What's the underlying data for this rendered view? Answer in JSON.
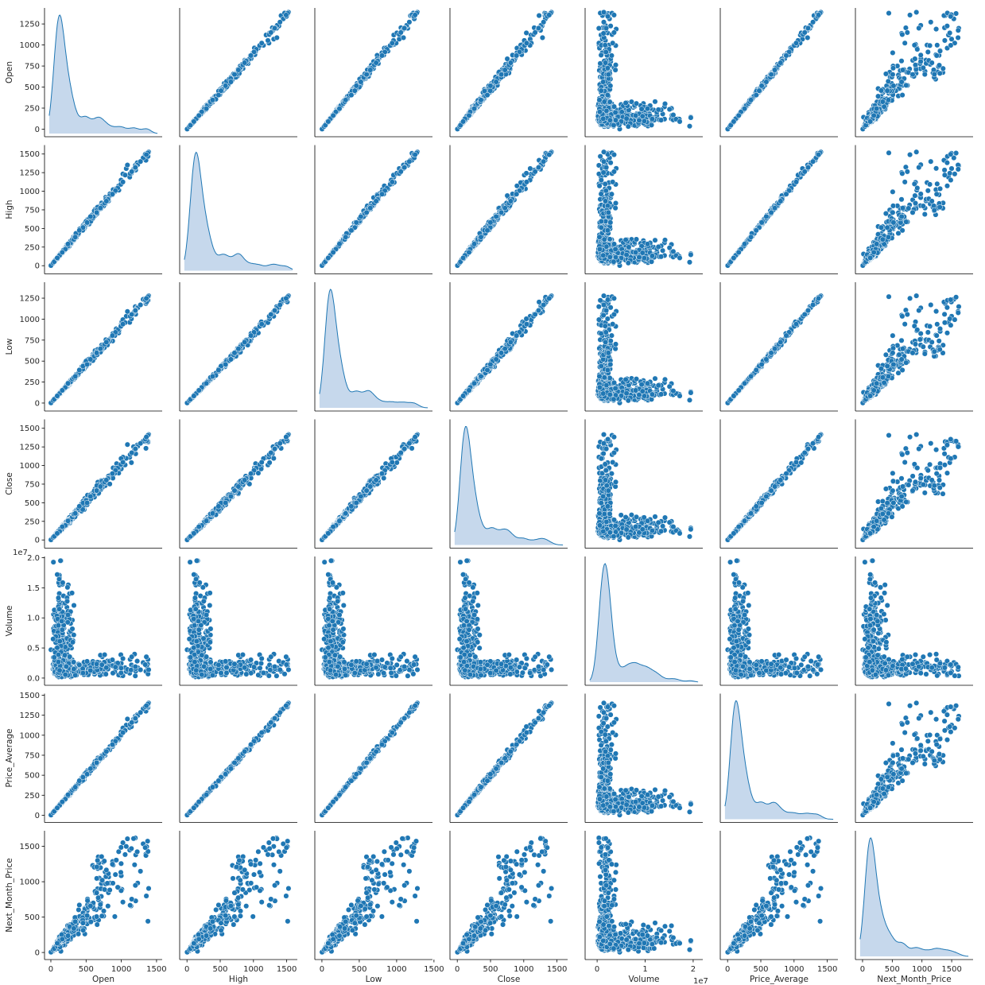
{
  "chart_data": {
    "type": "scatter",
    "variant": "pairplot",
    "variables": [
      "Open",
      "High",
      "Low",
      "Close",
      "Volume",
      "Price_Average",
      "Next_Month_Price"
    ],
    "diagonal": "kde",
    "colors": {
      "point": "#1f77b4",
      "point_edge": "#ffffff",
      "kde_fill": "#c6d8ec",
      "kde_line": "#1f77b4",
      "axis": "#000000",
      "text": "#262626",
      "background": "#ffffff"
    },
    "axes": {
      "Open": {
        "range": [
          -90,
          1580
        ],
        "ticks": [
          0,
          500,
          1000,
          1500
        ],
        "tick_labels": [
          "0",
          "500",
          "1000",
          "1500"
        ],
        "y_range": [
          -90,
          1440
        ],
        "y_ticks": [
          0,
          250,
          500,
          750,
          1000,
          1250
        ],
        "y_tick_labels": [
          "0",
          "250",
          "500",
          "750",
          "1000",
          "1250"
        ]
      },
      "High": {
        "range": [
          -110,
          1660
        ],
        "ticks": [
          0,
          500,
          1000,
          1500
        ],
        "tick_labels": [
          "0",
          "500",
          "1000",
          "1500"
        ],
        "y_range": [
          -110,
          1620
        ],
        "y_ticks": [
          0,
          250,
          500,
          750,
          1000,
          1250,
          1500
        ],
        "y_tick_labels": [
          "0",
          "250",
          "500",
          "750",
          "1000",
          "1250",
          "1500"
        ]
      },
      "Low": {
        "range": [
          -95,
          1480
        ],
        "ticks": [
          0,
          500,
          1000,
          1500
        ],
        "tick_labels": [
          "0",
          "500",
          "1000",
          "1500"
        ],
        "y_range": [
          -95,
          1440
        ],
        "y_ticks": [
          0,
          250,
          500,
          750,
          1000,
          1250
        ],
        "y_tick_labels": [
          "0",
          "250",
          "500",
          "750",
          "1000",
          "1250"
        ]
      },
      "Close": {
        "range": [
          -110,
          1660
        ],
        "ticks": [
          0,
          500,
          1000,
          1500
        ],
        "tick_labels": [
          "0",
          "500",
          "1000",
          "1500"
        ],
        "y_range": [
          -110,
          1620
        ],
        "y_ticks": [
          0,
          250,
          500,
          750,
          1000,
          1250,
          1500
        ],
        "y_tick_labels": [
          "0",
          "250",
          "500",
          "750",
          "1000",
          "1250",
          "1500"
        ]
      },
      "Volume": {
        "range": [
          -0.25,
          2.2
        ],
        "ticks": [
          0,
          1,
          2
        ],
        "tick_labels": [
          "0",
          "1",
          "2"
        ],
        "y_range": [
          -0.12,
          2.02
        ],
        "y_ticks": [
          0,
          0.5,
          1.0,
          1.5,
          2.0
        ],
        "y_tick_labels": [
          "0.0",
          "0.5",
          "1.0",
          "1.5",
          "2.0"
        ],
        "offset": "1e7"
      },
      "Price_Average": {
        "range": [
          -110,
          1660
        ],
        "ticks": [
          0,
          500,
          1000,
          1500
        ],
        "tick_labels": [
          "0",
          "500",
          "1000",
          "1500"
        ],
        "y_range": [
          -90,
          1520
        ],
        "y_ticks": [
          0,
          250,
          500,
          750,
          1000,
          1250,
          1500
        ],
        "y_tick_labels": [
          "0",
          "250",
          "500",
          "750",
          "1000",
          "1250",
          "1500"
        ]
      },
      "Next_Month_Price": {
        "range": [
          -120,
          1860
        ],
        "ticks": [
          0,
          500,
          1000,
          1500
        ],
        "tick_labels": [
          "0",
          "500",
          "1000",
          "1500"
        ],
        "y_range": [
          -100,
          1720
        ],
        "y_ticks": [
          0,
          500,
          1000,
          1500
        ],
        "y_tick_labels": [
          "0",
          "500",
          "1000",
          "1500"
        ]
      }
    },
    "grid": false,
    "legend": "none"
  }
}
